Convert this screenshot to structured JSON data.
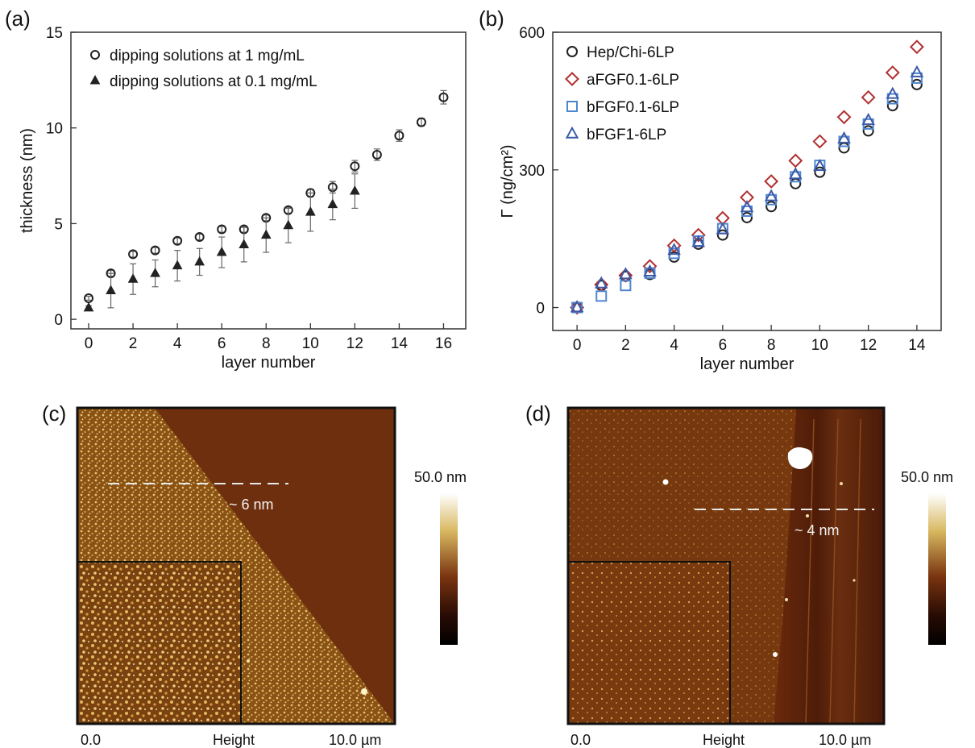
{
  "panels": {
    "a": {
      "letter": "(a)"
    },
    "b": {
      "letter": "(b)"
    },
    "c": {
      "letter": "(c)",
      "scale_label": "50.0 nm",
      "step_label": "~ 6 nm",
      "footer": [
        "0.0",
        "Height",
        "10.0 µm"
      ]
    },
    "d": {
      "letter": "(d)",
      "scale_label": "50.0 nm",
      "step_label": "~ 4 nm",
      "footer": [
        "0.0",
        "Height",
        "10.0 µm"
      ]
    }
  },
  "colors": {
    "black": "#222222",
    "aFGF": "#b03030",
    "bFGF01": "#4f86d0",
    "bFGF1": "#3d5aa8",
    "afm_light": "#c89a40",
    "afm_dark": "#6e2f0e"
  },
  "chart_data": [
    {
      "id": "a",
      "type": "scatter",
      "xlabel": "layer number",
      "ylabel": "thickness (nm)",
      "xlim": [
        -0.8,
        17
      ],
      "ylim": [
        -0.5,
        15
      ],
      "xticks": [
        0,
        2,
        4,
        6,
        8,
        10,
        12,
        14,
        16
      ],
      "yticks": [
        0,
        5,
        10,
        15
      ],
      "legend": "top-left",
      "series": [
        {
          "name": "dipping solutions at 1 mg/mL",
          "marker": "circle",
          "x": [
            0,
            1,
            2,
            3,
            4,
            5,
            6,
            7,
            8,
            9,
            10,
            11,
            12,
            13,
            14,
            15,
            16
          ],
          "y": [
            1.1,
            2.4,
            3.4,
            3.6,
            4.1,
            4.3,
            4.7,
            4.7,
            5.3,
            5.7,
            6.6,
            6.9,
            8.0,
            8.6,
            9.6,
            10.3,
            11.6
          ],
          "err": [
            0.1,
            0.15,
            0.15,
            0.15,
            0.15,
            0.15,
            0.15,
            0.15,
            0.15,
            0.15,
            0.2,
            0.3,
            0.3,
            0.3,
            0.3,
            0.2,
            0.35
          ]
        },
        {
          "name": "dipping solutions at 0.1 mg/mL",
          "marker": "triangle",
          "x": [
            0,
            1,
            2,
            3,
            4,
            5,
            6,
            7,
            8,
            9,
            10,
            11,
            12
          ],
          "y": [
            0.6,
            1.5,
            2.1,
            2.4,
            2.8,
            3.0,
            3.5,
            3.9,
            4.4,
            4.9,
            5.6,
            6.0,
            6.7
          ],
          "err": [
            0.1,
            0.9,
            0.8,
            0.7,
            0.8,
            0.7,
            0.8,
            0.9,
            0.9,
            0.9,
            1.0,
            0.8,
            0.9
          ]
        }
      ]
    },
    {
      "id": "b",
      "type": "scatter",
      "xlabel": "layer number",
      "ylabel": "Γ (ng/cm²)",
      "xlim": [
        -1,
        15
      ],
      "ylim": [
        -50,
        600
      ],
      "xticks": [
        0,
        2,
        4,
        6,
        8,
        10,
        12,
        14
      ],
      "yticks": [
        0,
        300,
        600
      ],
      "legend": "top-left",
      "series": [
        {
          "name": "Hep/Chi-6LP",
          "marker": "circle",
          "color": "#222222",
          "x": [
            0,
            1,
            2,
            3,
            4,
            5,
            6,
            7,
            8,
            9,
            10,
            11,
            12,
            13,
            14
          ],
          "y": [
            0,
            48,
            68,
            72,
            110,
            138,
            158,
            196,
            220,
            270,
            295,
            348,
            385,
            440,
            486
          ]
        },
        {
          "name": "aFGF0.1-6LP",
          "marker": "diamond",
          "color": "#b03030",
          "x": [
            0,
            1,
            2,
            3,
            4,
            5,
            6,
            7,
            8,
            9,
            10,
            11,
            12,
            13,
            14
          ],
          "y": [
            0,
            50,
            70,
            90,
            135,
            158,
            195,
            240,
            275,
            320,
            362,
            415,
            458,
            512,
            568
          ]
        },
        {
          "name": "bFGF0.1-6LP",
          "marker": "square",
          "color": "#4f86d0",
          "x": [
            0,
            1,
            2,
            3,
            4,
            5,
            6,
            7,
            8,
            9,
            10,
            11,
            12,
            13,
            14
          ],
          "y": [
            0,
            25,
            48,
            75,
            118,
            145,
            172,
            210,
            235,
            285,
            310,
            362,
            400,
            455,
            500
          ]
        },
        {
          "name": "bFGF1-6LP",
          "marker": "triangle",
          "color": "#3d5aa8",
          "x": [
            0,
            1,
            2,
            3,
            4,
            5,
            6,
            7,
            8,
            9,
            10,
            11,
            12,
            13,
            14
          ],
          "y": [
            0,
            52,
            72,
            78,
            125,
            142,
            170,
            218,
            242,
            290,
            308,
            368,
            408,
            465,
            512
          ]
        }
      ]
    }
  ]
}
